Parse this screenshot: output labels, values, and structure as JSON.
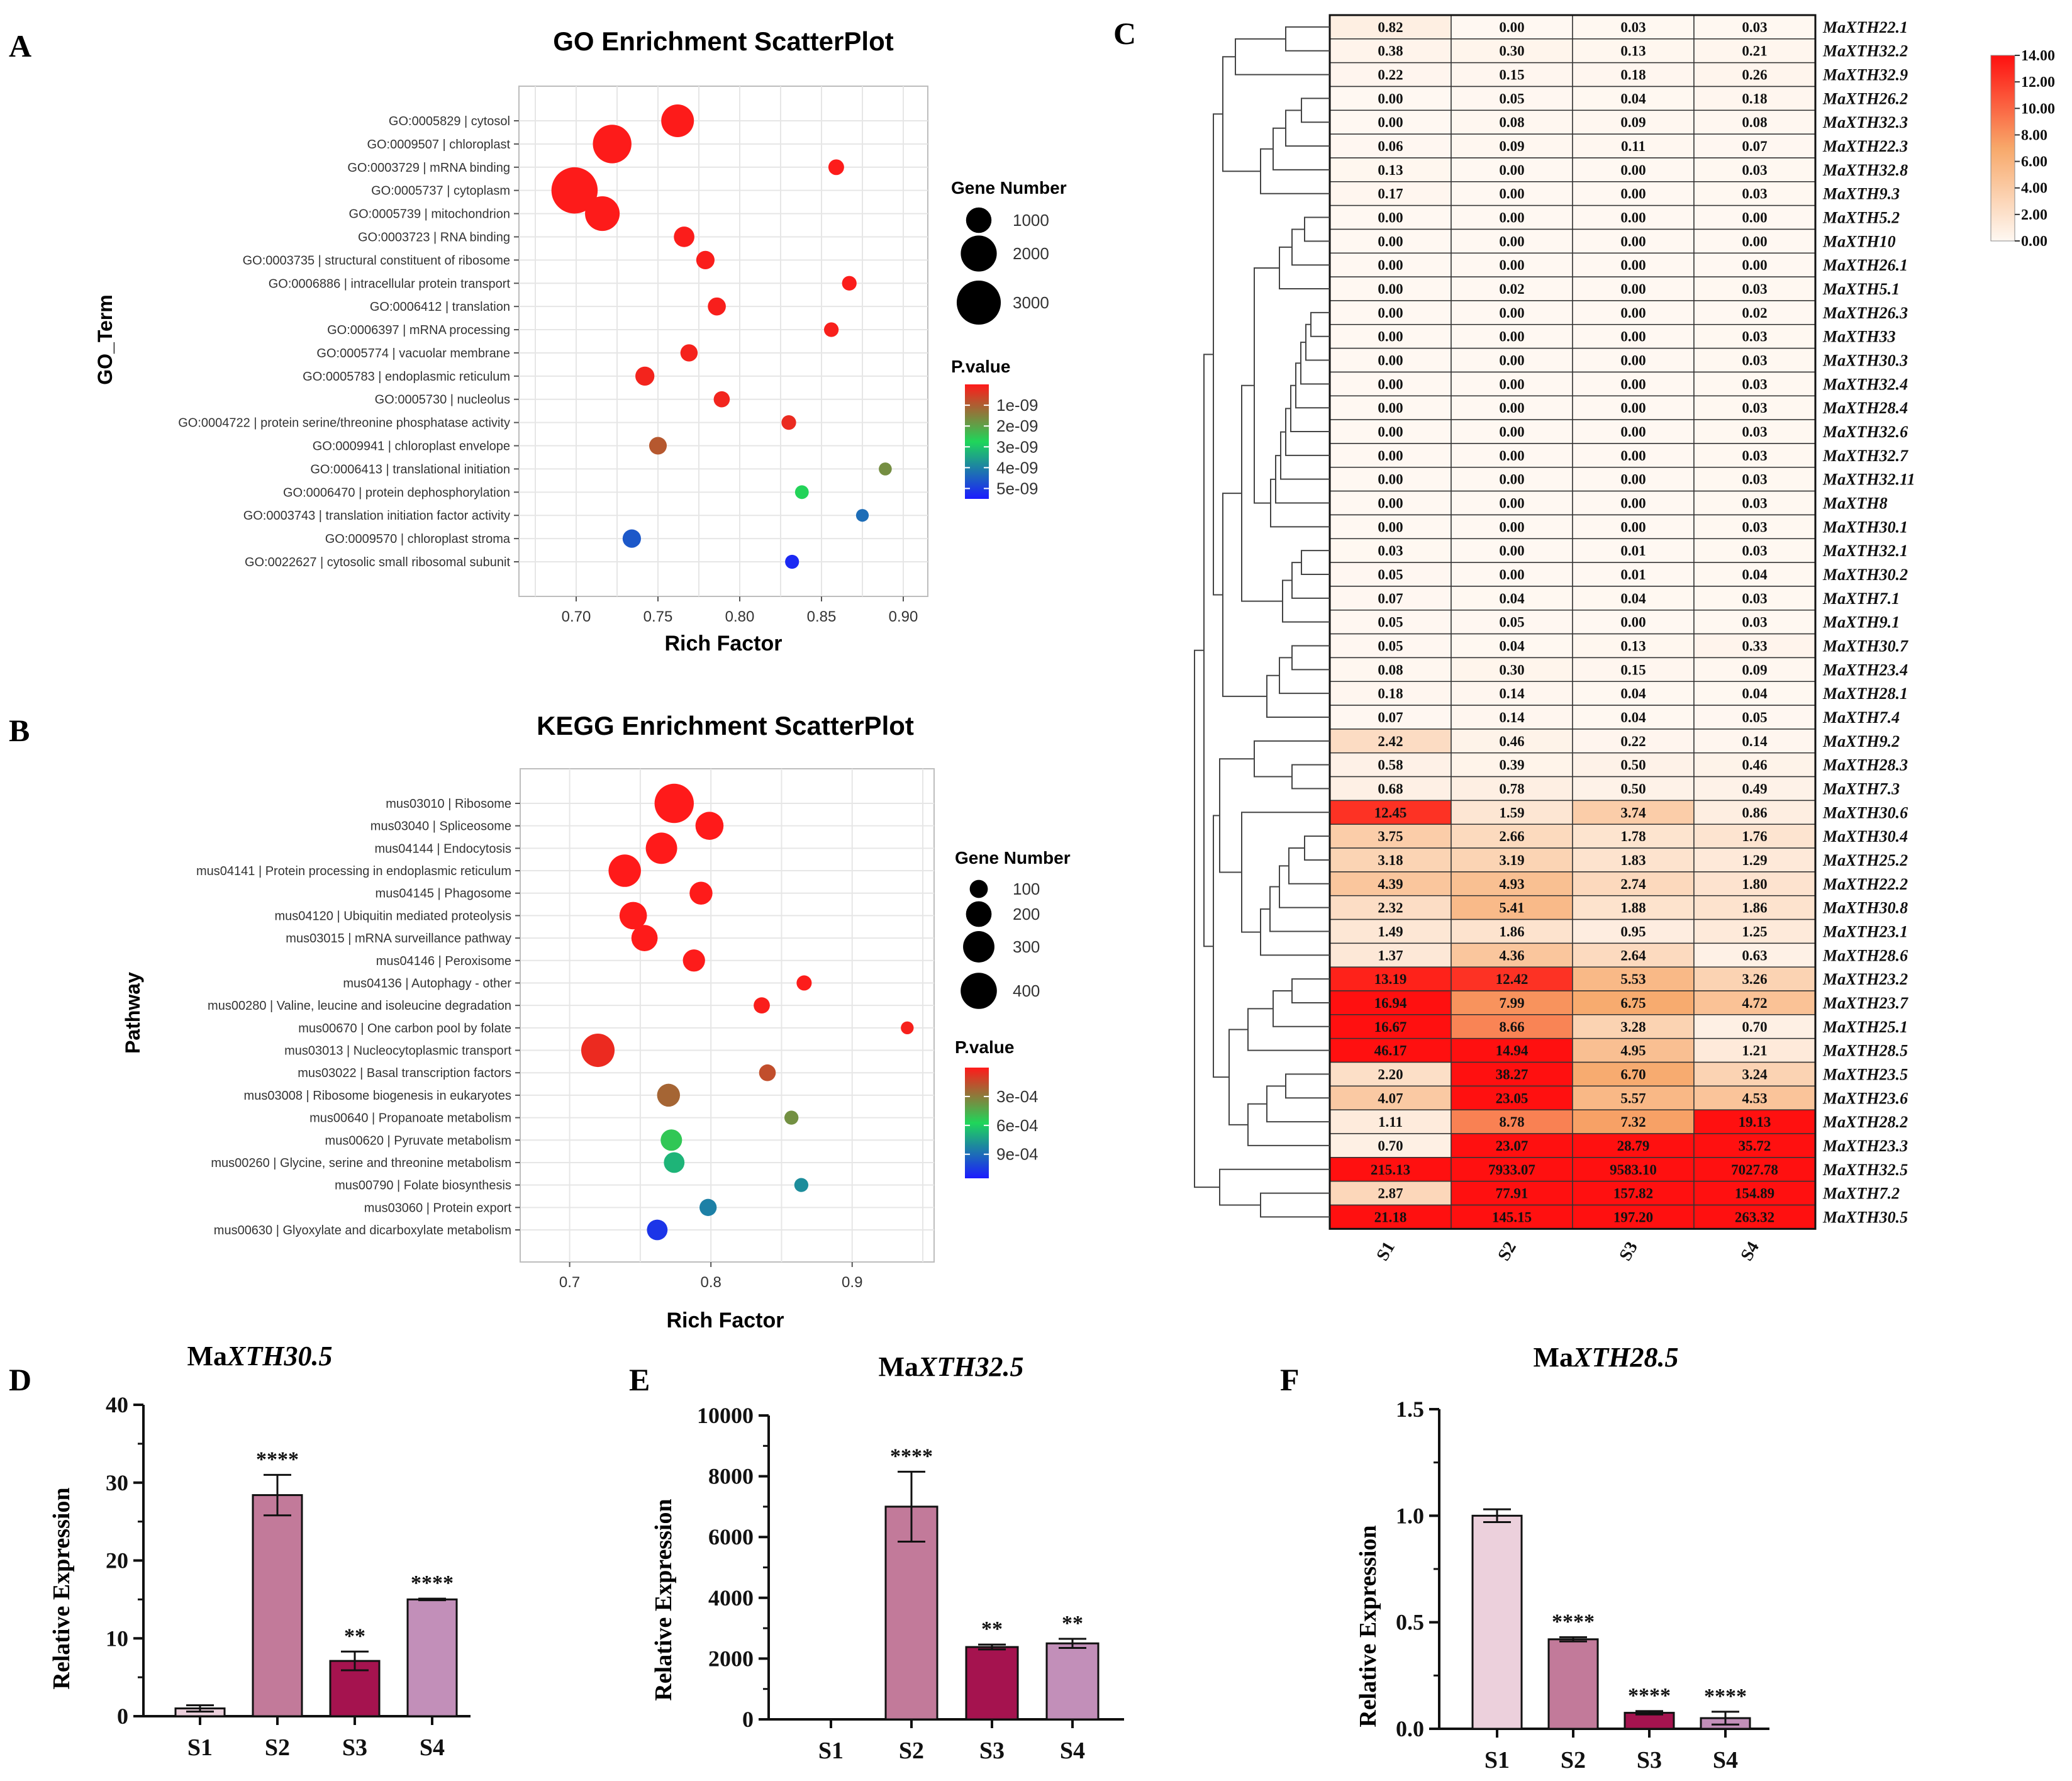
{
  "panel_labels": {
    "A": "A",
    "B": "B",
    "C": "C",
    "D": "D",
    "E": "E",
    "F": "F"
  },
  "colors": {
    "pval_high": "#ff1a1a",
    "pval_mid": "#1fd65a",
    "pval_low": "#1b1bff",
    "bar_s1": "#ecd0dc",
    "bar_s2": "#c27a9a",
    "bar_s3": "#a5134f",
    "bar_s4": "#c28fb9",
    "heat_low": "#fff8f2",
    "heat_high": "#ff1010"
  },
  "chart_data": [
    {
      "id": "A",
      "type": "scatter",
      "title": "GO Enrichment ScatterPlot",
      "xlabel": "Rich Factor",
      "ylabel": "GO_Term",
      "xlim": [
        0.665,
        0.915
      ],
      "xticks": [
        0.7,
        0.75,
        0.8,
        0.85,
        0.9
      ],
      "xtick_labels": [
        "0.70",
        "0.75",
        "0.80",
        "0.85",
        "0.90"
      ],
      "size_legend": {
        "title": "Gene Number",
        "values": [
          1000,
          2000,
          3000
        ],
        "labels": [
          "1000",
          "2000",
          "3000"
        ]
      },
      "color_legend": {
        "title": "P.value",
        "labels": [
          "1e-09",
          "2e-09",
          "3e-09",
          "4e-09",
          "5e-09"
        ],
        "values": [
          1e-09,
          2e-09,
          3e-09,
          4e-09,
          5e-09
        ],
        "range": [
          0,
          5.5e-09
        ]
      },
      "points": [
        {
          "label": "GO:0005829 | cytosol",
          "rich": 0.762,
          "genes": 1650,
          "p": 2e-11
        },
        {
          "label": "GO:0009507 | chloroplast",
          "rich": 0.722,
          "genes": 2300,
          "p": 2e-11
        },
        {
          "label": "GO:0003729 | mRNA binding",
          "rich": 0.859,
          "genes": 380,
          "p": 3e-11
        },
        {
          "label": "GO:0005737 | cytoplasm",
          "rich": 0.699,
          "genes": 3300,
          "p": 2e-11
        },
        {
          "label": "GO:0005739 | mitochondrion",
          "rich": 0.716,
          "genes": 1850,
          "p": 2e-11
        },
        {
          "label": "GO:0003723 | RNA binding",
          "rich": 0.766,
          "genes": 650,
          "p": 5e-11
        },
        {
          "label": "GO:0003735 | structural constituent of ribosome",
          "rich": 0.779,
          "genes": 520,
          "p": 6e-11
        },
        {
          "label": "GO:0006886 | intracellular protein transport",
          "rich": 0.867,
          "genes": 330,
          "p": 5e-11
        },
        {
          "label": "GO:0006412 | translation",
          "rich": 0.786,
          "genes": 500,
          "p": 8e-11
        },
        {
          "label": "GO:0006397 | mRNA processing",
          "rich": 0.856,
          "genes": 330,
          "p": 9e-11
        },
        {
          "label": "GO:0005774 | vacuolar membrane",
          "rich": 0.769,
          "genes": 460,
          "p": 1.2e-10
        },
        {
          "label": "GO:0005783 | endoplasmic reticulum",
          "rich": 0.742,
          "genes": 560,
          "p": 1.5e-10
        },
        {
          "label": "GO:0005730 | nucleolus",
          "rich": 0.789,
          "genes": 400,
          "p": 1.6e-10
        },
        {
          "label": "GO:0004722 | protein serine/threonine phosphatase activity",
          "rich": 0.83,
          "genes": 330,
          "p": 2.5e-10
        },
        {
          "label": "GO:0009941 | chloroplast envelope",
          "rich": 0.75,
          "genes": 480,
          "p": 9e-10
        },
        {
          "label": "GO:0006413 | translational initiation",
          "rich": 0.889,
          "genes": 260,
          "p": 1.7e-09
        },
        {
          "label": "GO:0006470 | protein dephosphorylation",
          "rich": 0.838,
          "genes": 290,
          "p": 2.7e-09
        },
        {
          "label": "GO:0003743 | translation initiation factor activity",
          "rich": 0.875,
          "genes": 250,
          "p": 4.3e-09
        },
        {
          "label": "GO:0009570 | chloroplast stroma",
          "rich": 0.734,
          "genes": 520,
          "p": 4.6e-09
        },
        {
          "label": "GO:0022627 | cytosolic small ribosomal subunit",
          "rich": 0.832,
          "genes": 300,
          "p": 5.3e-09
        }
      ]
    },
    {
      "id": "B",
      "type": "scatter",
      "title": "KEGG Enrichment ScatterPlot",
      "xlabel": "Rich Factor",
      "ylabel": "Pathway",
      "xlim": [
        0.665,
        0.958
      ],
      "xticks": [
        0.7,
        0.8,
        0.9
      ],
      "xtick_labels": [
        "0.7",
        "0.8",
        "0.9"
      ],
      "size_legend": {
        "title": "Gene Number",
        "values": [
          100,
          200,
          300,
          400
        ],
        "labels": [
          "100",
          "200",
          "300",
          "400"
        ]
      },
      "color_legend": {
        "title": "P.value",
        "labels": [
          "3e-04",
          "6e-04",
          "9e-04"
        ],
        "values": [
          0.0003,
          0.0006,
          0.0009
        ],
        "range": [
          0,
          0.00115
        ]
      },
      "points": [
        {
          "label": "mus03010 | Ribosome",
          "rich": 0.774,
          "genes": 470,
          "p": 1e-06
        },
        {
          "label": "mus03040 | Spliceosome",
          "rich": 0.799,
          "genes": 240,
          "p": 1e-06
        },
        {
          "label": "mus04144 | Endocytosis",
          "rich": 0.765,
          "genes": 300,
          "p": 1e-06
        },
        {
          "label": "mus04141 | Protein processing in endoplasmic reticulum",
          "rich": 0.739,
          "genes": 320,
          "p": 1e-06
        },
        {
          "label": "mus04145 | Phagosome",
          "rich": 0.793,
          "genes": 160,
          "p": 2e-06
        },
        {
          "label": "mus04120 | Ubiquitin mediated proteolysis",
          "rich": 0.745,
          "genes": 230,
          "p": 2e-06
        },
        {
          "label": "mus03015 | mRNA surveillance pathway",
          "rich": 0.753,
          "genes": 210,
          "p": 3e-06
        },
        {
          "label": "mus04146 | Peroxisome",
          "rich": 0.788,
          "genes": 150,
          "p": 5e-06
        },
        {
          "label": "mus04136 | Autophagy - other",
          "rich": 0.866,
          "genes": 70,
          "p": 8e-06
        },
        {
          "label": "mus00280 | Valine, leucine and isoleucine degradation",
          "rich": 0.836,
          "genes": 80,
          "p": 1.2e-05
        },
        {
          "label": "mus00670 | One carbon pool by folate",
          "rich": 0.939,
          "genes": 50,
          "p": 2e-05
        },
        {
          "label": "mus03013 | Nucleocytoplasmic transport",
          "rich": 0.72,
          "genes": 340,
          "p": 5e-05
        },
        {
          "label": "mus03022 | Basal transcription factors",
          "rich": 0.84,
          "genes": 85,
          "p": 0.00016
        },
        {
          "label": "mus03008 | Ribosome biogenesis in eukaryotes",
          "rich": 0.77,
          "genes": 160,
          "p": 0.00023
        },
        {
          "label": "mus00640 | Propanoate metabolism",
          "rich": 0.857,
          "genes": 60,
          "p": 0.00036
        },
        {
          "label": "mus00620 | Pyruvate metabolism",
          "rich": 0.772,
          "genes": 140,
          "p": 0.00053
        },
        {
          "label": "mus00260 | Glycine, serine and threonine metabolism",
          "rich": 0.774,
          "genes": 130,
          "p": 0.00068
        },
        {
          "label": "mus00790 | Folate biosynthesis",
          "rich": 0.864,
          "genes": 60,
          "p": 0.0008
        },
        {
          "label": "mus03060 | Protein export",
          "rich": 0.798,
          "genes": 90,
          "p": 0.00084
        },
        {
          "label": "mus00630 | Glyoxylate and dicarboxylate metabolism",
          "rich": 0.762,
          "genes": 130,
          "p": 0.00107
        }
      ]
    },
    {
      "id": "C",
      "type": "heatmap",
      "columns": [
        "S1",
        "S2",
        "S3",
        "S4"
      ],
      "scale": {
        "min": 0,
        "max": 14,
        "labels": [
          "14.00",
          "12.00",
          "10.00",
          "8.00",
          "6.00",
          "4.00",
          "2.00",
          "0.00"
        ],
        "values": [
          14,
          12,
          10,
          8,
          6,
          4,
          2,
          0
        ]
      },
      "rows": [
        {
          "gene": "MaXTH22.1",
          "values": [
            "0.82",
            "0.00",
            "0.03",
            "0.03"
          ]
        },
        {
          "gene": "MaXTH32.2",
          "values": [
            "0.38",
            "0.30",
            "0.13",
            "0.21"
          ]
        },
        {
          "gene": "MaXTH32.9",
          "values": [
            "0.22",
            "0.15",
            "0.18",
            "0.26"
          ]
        },
        {
          "gene": "MaXTH26.2",
          "values": [
            "0.00",
            "0.05",
            "0.04",
            "0.18"
          ]
        },
        {
          "gene": "MaXTH32.3",
          "values": [
            "0.00",
            "0.08",
            "0.09",
            "0.08"
          ]
        },
        {
          "gene": "MaXTH22.3",
          "values": [
            "0.06",
            "0.09",
            "0.11",
            "0.07"
          ]
        },
        {
          "gene": "MaXTH32.8",
          "values": [
            "0.13",
            "0.00",
            "0.00",
            "0.03"
          ]
        },
        {
          "gene": "MaXTH9.3",
          "values": [
            "0.17",
            "0.00",
            "0.00",
            "0.03"
          ]
        },
        {
          "gene": "MaXTH5.2",
          "values": [
            "0.00",
            "0.00",
            "0.00",
            "0.00"
          ]
        },
        {
          "gene": "MaXTH10",
          "values": [
            "0.00",
            "0.00",
            "0.00",
            "0.00"
          ]
        },
        {
          "gene": "MaXTH26.1",
          "values": [
            "0.00",
            "0.00",
            "0.00",
            "0.00"
          ]
        },
        {
          "gene": "MaXTH5.1",
          "values": [
            "0.00",
            "0.02",
            "0.00",
            "0.03"
          ]
        },
        {
          "gene": "MaXTH26.3",
          "values": [
            "0.00",
            "0.00",
            "0.00",
            "0.02"
          ]
        },
        {
          "gene": "MaXTH33",
          "values": [
            "0.00",
            "0.00",
            "0.00",
            "0.03"
          ]
        },
        {
          "gene": "MaXTH30.3",
          "values": [
            "0.00",
            "0.00",
            "0.00",
            "0.03"
          ]
        },
        {
          "gene": "MaXTH32.4",
          "values": [
            "0.00",
            "0.00",
            "0.00",
            "0.03"
          ]
        },
        {
          "gene": "MaXTH28.4",
          "values": [
            "0.00",
            "0.00",
            "0.00",
            "0.03"
          ]
        },
        {
          "gene": "MaXTH32.6",
          "values": [
            "0.00",
            "0.00",
            "0.00",
            "0.03"
          ]
        },
        {
          "gene": "MaXTH32.7",
          "values": [
            "0.00",
            "0.00",
            "0.00",
            "0.03"
          ]
        },
        {
          "gene": "MaXTH32.11",
          "values": [
            "0.00",
            "0.00",
            "0.00",
            "0.03"
          ]
        },
        {
          "gene": "MaXTH8",
          "values": [
            "0.00",
            "0.00",
            "0.00",
            "0.03"
          ]
        },
        {
          "gene": "MaXTH30.1",
          "values": [
            "0.00",
            "0.00",
            "0.00",
            "0.03"
          ]
        },
        {
          "gene": "MaXTH32.1",
          "values": [
            "0.03",
            "0.00",
            "0.01",
            "0.03"
          ]
        },
        {
          "gene": "MaXTH30.2",
          "values": [
            "0.05",
            "0.00",
            "0.01",
            "0.04"
          ]
        },
        {
          "gene": "MaXTH7.1",
          "values": [
            "0.07",
            "0.04",
            "0.04",
            "0.03"
          ]
        },
        {
          "gene": "MaXTH9.1",
          "values": [
            "0.05",
            "0.05",
            "0.00",
            "0.03"
          ]
        },
        {
          "gene": "MaXTH30.7",
          "values": [
            "0.05",
            "0.04",
            "0.13",
            "0.33"
          ]
        },
        {
          "gene": "MaXTH23.4",
          "values": [
            "0.08",
            "0.30",
            "0.15",
            "0.09"
          ]
        },
        {
          "gene": "MaXTH28.1",
          "values": [
            "0.18",
            "0.14",
            "0.04",
            "0.04"
          ]
        },
        {
          "gene": "MaXTH7.4",
          "values": [
            "0.07",
            "0.14",
            "0.04",
            "0.05"
          ]
        },
        {
          "gene": "MaXTH9.2",
          "values": [
            "2.42",
            "0.46",
            "0.22",
            "0.14"
          ]
        },
        {
          "gene": "MaXTH28.3",
          "values": [
            "0.58",
            "0.39",
            "0.50",
            "0.46"
          ]
        },
        {
          "gene": "MaXTH7.3",
          "values": [
            "0.68",
            "0.78",
            "0.50",
            "0.49"
          ]
        },
        {
          "gene": "MaXTH30.6",
          "values": [
            "12.45",
            "1.59",
            "3.74",
            "0.86"
          ]
        },
        {
          "gene": "MaXTH30.4",
          "values": [
            "3.75",
            "2.66",
            "1.78",
            "1.76"
          ]
        },
        {
          "gene": "MaXTH25.2",
          "values": [
            "3.18",
            "3.19",
            "1.83",
            "1.29"
          ]
        },
        {
          "gene": "MaXTH22.2",
          "values": [
            "4.39",
            "4.93",
            "2.74",
            "1.80"
          ]
        },
        {
          "gene": "MaXTH30.8",
          "values": [
            "2.32",
            "5.41",
            "1.88",
            "1.86"
          ]
        },
        {
          "gene": "MaXTH23.1",
          "values": [
            "1.49",
            "1.86",
            "0.95",
            "1.25"
          ]
        },
        {
          "gene": "MaXTH28.6",
          "values": [
            "1.37",
            "4.36",
            "2.64",
            "0.63"
          ]
        },
        {
          "gene": "MaXTH23.2",
          "values": [
            "13.19",
            "12.42",
            "5.53",
            "3.26"
          ]
        },
        {
          "gene": "MaXTH23.7",
          "values": [
            "16.94",
            "7.99",
            "6.75",
            "4.72"
          ]
        },
        {
          "gene": "MaXTH25.1",
          "values": [
            "16.67",
            "8.66",
            "3.28",
            "0.70"
          ]
        },
        {
          "gene": "MaXTH28.5",
          "values": [
            "46.17",
            "14.94",
            "4.95",
            "1.21"
          ]
        },
        {
          "gene": "MaXTH23.5",
          "values": [
            "2.20",
            "38.27",
            "6.70",
            "3.24"
          ]
        },
        {
          "gene": "MaXTH23.6",
          "values": [
            "4.07",
            "23.05",
            "5.57",
            "4.53"
          ]
        },
        {
          "gene": "MaXTH28.2",
          "values": [
            "1.11",
            "8.78",
            "7.32",
            "19.13"
          ]
        },
        {
          "gene": "MaXTH23.3",
          "values": [
            "0.70",
            "23.07",
            "28.79",
            "35.72"
          ]
        },
        {
          "gene": "MaXTH32.5",
          "values": [
            "215.13",
            "7933.07",
            "9583.10",
            "7027.78"
          ]
        },
        {
          "gene": "MaXTH7.2",
          "values": [
            "2.87",
            "77.91",
            "157.82",
            "154.89"
          ]
        },
        {
          "gene": "MaXTH30.5",
          "values": [
            "21.18",
            "145.15",
            "197.20",
            "263.32"
          ]
        }
      ]
    },
    {
      "id": "D",
      "type": "bar",
      "title_prefix": "Ma",
      "title_italic": "XTH30.5",
      "ylabel": "Relative Expression",
      "categories": [
        "S1",
        "S2",
        "S3",
        "S4"
      ],
      "values": [
        1.0,
        28.4,
        7.1,
        15.0
      ],
      "errors": [
        0.4,
        2.6,
        1.2,
        0.1
      ],
      "significance": [
        "",
        "****",
        "**",
        "****"
      ],
      "ylim": [
        0,
        40
      ],
      "yticks": [
        0,
        10,
        20,
        30,
        40
      ],
      "ytick_labels": [
        "0",
        "10",
        "20",
        "30",
        "40"
      ]
    },
    {
      "id": "E",
      "type": "bar",
      "title_prefix": "Ma",
      "title_italic": "XTH32.5",
      "ylabel": "Relative Expression",
      "categories": [
        "S1",
        "S2",
        "S3",
        "S4"
      ],
      "values": [
        1,
        7000,
        2380,
        2500
      ],
      "errors": [
        0,
        1150,
        80,
        150
      ],
      "significance": [
        "",
        "****",
        "**",
        "**"
      ],
      "ylim": [
        0,
        10000
      ],
      "yticks": [
        0,
        2000,
        4000,
        6000,
        8000,
        10000
      ],
      "ytick_labels": [
        "0",
        "2000",
        "4000",
        "6000",
        "8000",
        "10000"
      ]
    },
    {
      "id": "F",
      "type": "bar",
      "title_prefix": "Ma",
      "title_italic": "XTH28.5",
      "ylabel": "Relative Expression",
      "categories": [
        "S1",
        "S2",
        "S3",
        "S4"
      ],
      "values": [
        1.0,
        0.42,
        0.075,
        0.05
      ],
      "errors": [
        0.03,
        0.01,
        0.008,
        0.03
      ],
      "significance": [
        "",
        "****",
        "****",
        "****"
      ],
      "ylim": [
        0,
        1.5
      ],
      "yticks": [
        0,
        0.5,
        1.0,
        1.5
      ],
      "ytick_labels": [
        "0.0",
        "0.5",
        "1.0",
        "1.5"
      ]
    }
  ]
}
